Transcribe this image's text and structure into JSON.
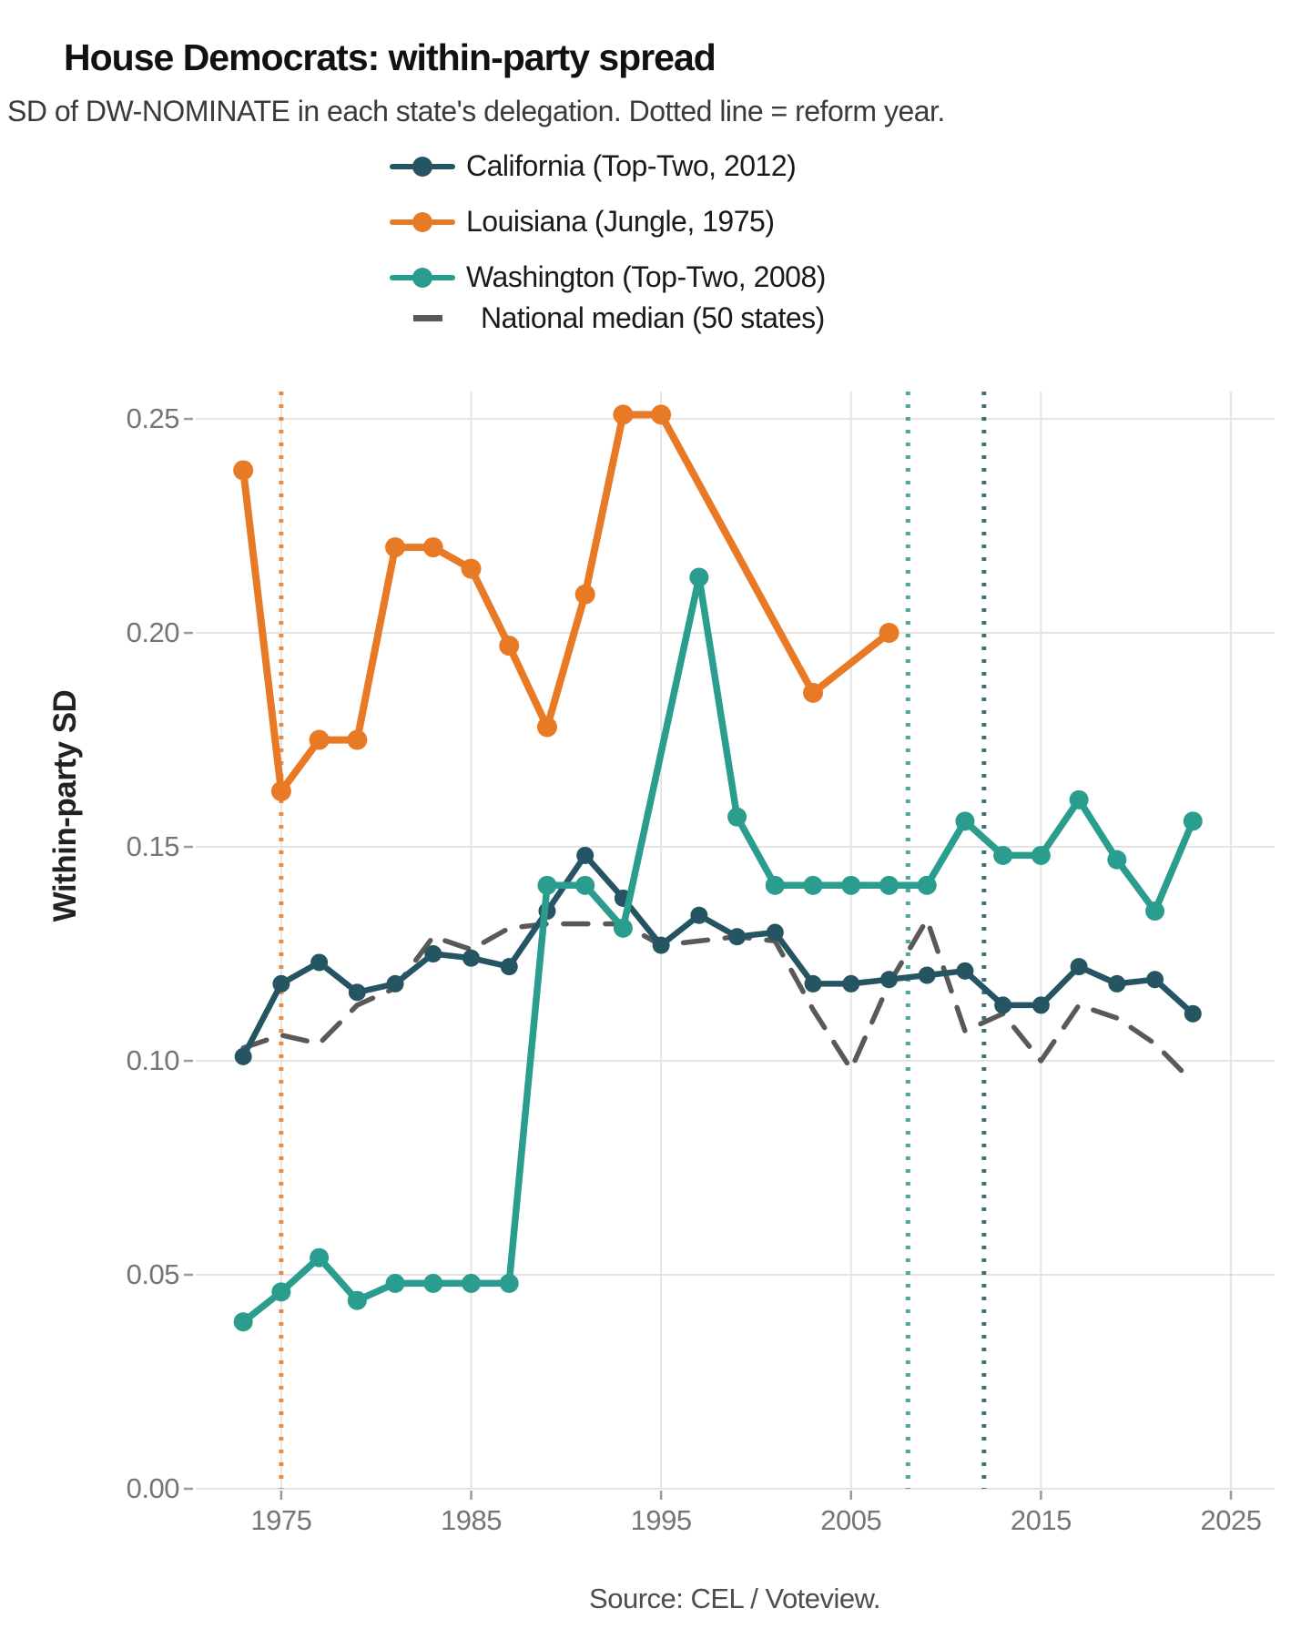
{
  "header": {
    "title": "House Democrats: within-party spread",
    "subtitle": "SD of DW-NOMINATE in each state's delegation. Dotted line = reform year."
  },
  "footer": {
    "source": "Source: CEL / Voteview."
  },
  "chart_data": {
    "type": "line",
    "title": "House Democrats: within-party spread",
    "subtitle": "SD of DW-NOMINATE in each state's delegation. Dotted line = reform year.",
    "xlabel": "",
    "ylabel": "Within-party SD",
    "xlim": [
      1970.5,
      2027.3
    ],
    "ylim": [
      0,
      0.2564
    ],
    "x_ticks": [
      1975,
      1985,
      1995,
      2005,
      2015,
      2025
    ],
    "y_ticks": [
      0.0,
      0.05,
      0.1,
      0.15,
      0.2,
      0.25
    ],
    "y_tick_labels": [
      "0.00",
      "0.05",
      "0.10",
      "0.15",
      "0.20",
      "0.25"
    ],
    "grid": true,
    "legend_position": "top",
    "series": [
      {
        "name": "California (Top-Two, 2012)",
        "color": "#255563",
        "line_style": "solid",
        "markers": true,
        "line_width": 6.5,
        "marker_radius": 9.5,
        "points": [
          [
            1973,
            0.101
          ],
          [
            1975,
            0.118
          ],
          [
            1977,
            0.123
          ],
          [
            1979,
            0.116
          ],
          [
            1981,
            0.118
          ],
          [
            1983,
            0.125
          ],
          [
            1985,
            0.124
          ],
          [
            1987,
            0.122
          ],
          [
            1989,
            0.135
          ],
          [
            1991,
            0.148
          ],
          [
            1993,
            0.138
          ],
          [
            1995,
            0.127
          ],
          [
            1997,
            0.134
          ],
          [
            1999,
            0.129
          ],
          [
            2001,
            0.13
          ],
          [
            2003,
            0.118
          ],
          [
            2005,
            0.118
          ],
          [
            2007,
            0.119
          ],
          [
            2009,
            0.12
          ],
          [
            2011,
            0.121
          ],
          [
            2013,
            0.113
          ],
          [
            2015,
            0.113
          ],
          [
            2017,
            0.122
          ],
          [
            2019,
            0.118
          ],
          [
            2021,
            0.119
          ],
          [
            2023,
            0.111
          ]
        ]
      },
      {
        "name": "Louisiana (Jungle, 1975)",
        "color": "#e87a25",
        "line_style": "solid",
        "markers": true,
        "line_width": 8,
        "marker_radius": 11,
        "points": [
          [
            1973,
            0.238
          ],
          [
            1975,
            0.163
          ],
          [
            1977,
            0.175
          ],
          [
            1979,
            0.175
          ],
          [
            1981,
            0.22
          ],
          [
            1983,
            0.22
          ],
          [
            1985,
            0.215
          ],
          [
            1987,
            0.197
          ],
          [
            1989,
            0.178
          ],
          [
            1991,
            0.209
          ],
          [
            1993,
            0.251
          ],
          [
            1995,
            0.251
          ],
          [
            2003,
            0.186
          ],
          [
            2007,
            0.2
          ]
        ]
      },
      {
        "name": "Washington (Top-Two, 2008)",
        "color": "#2a9d8f",
        "line_style": "solid",
        "markers": true,
        "line_width": 7.5,
        "marker_radius": 10.5,
        "points": [
          [
            1973,
            0.039
          ],
          [
            1975,
            0.046
          ],
          [
            1977,
            0.054
          ],
          [
            1979,
            0.044
          ],
          [
            1981,
            0.048
          ],
          [
            1983,
            0.048
          ],
          [
            1985,
            0.048
          ],
          [
            1987,
            0.048
          ],
          [
            1989,
            0.141
          ],
          [
            1991,
            0.141
          ],
          [
            1993,
            0.131
          ],
          [
            1997,
            0.213
          ],
          [
            1999,
            0.157
          ],
          [
            2001,
            0.141
          ],
          [
            2003,
            0.141
          ],
          [
            2005,
            0.141
          ],
          [
            2007,
            0.141
          ],
          [
            2009,
            0.141
          ],
          [
            2011,
            0.156
          ],
          [
            2013,
            0.148
          ],
          [
            2015,
            0.148
          ],
          [
            2017,
            0.161
          ],
          [
            2019,
            0.147
          ],
          [
            2021,
            0.135
          ],
          [
            2023,
            0.156
          ]
        ]
      },
      {
        "name": "National median (50 states)",
        "color": "#595959",
        "line_style": "dashed",
        "markers": false,
        "line_width": 5.5,
        "points": [
          [
            1973,
            0.103
          ],
          [
            1975,
            0.106
          ],
          [
            1977,
            0.104
          ],
          [
            1979,
            0.113
          ],
          [
            1981,
            0.117
          ],
          [
            1983,
            0.129
          ],
          [
            1985,
            0.126
          ],
          [
            1987,
            0.131
          ],
          [
            1989,
            0.132
          ],
          [
            1991,
            0.132
          ],
          [
            1993,
            0.132
          ],
          [
            1995,
            0.127
          ],
          [
            1997,
            0.128
          ],
          [
            1999,
            0.129
          ],
          [
            2001,
            0.128
          ],
          [
            2003,
            0.112
          ],
          [
            2005,
            0.098
          ],
          [
            2007,
            0.118
          ],
          [
            2009,
            0.133
          ],
          [
            2011,
            0.107
          ],
          [
            2013,
            0.111
          ],
          [
            2015,
            0.1
          ],
          [
            2017,
            0.113
          ],
          [
            2019,
            0.11
          ],
          [
            2021,
            0.104
          ],
          [
            2023,
            0.095
          ]
        ]
      }
    ],
    "reform_lines": [
      {
        "year": 1975,
        "color": "#e87a25"
      },
      {
        "year": 2008,
        "color": "#2a9d8f"
      },
      {
        "year": 2012,
        "color": "#255563"
      }
    ],
    "annotations": []
  },
  "legend": {
    "items": [
      {
        "label": "California (Top-Two, 2012)",
        "color": "#255563",
        "marker": "line-dot"
      },
      {
        "label": "Louisiana (Jungle, 1975)",
        "color": "#e87a25",
        "marker": "line-dot"
      },
      {
        "label": "Washington (Top-Two, 2008)",
        "color": "#2a9d8f",
        "marker": "line-dot"
      },
      {
        "label": "National median (50 states)",
        "color": "#595959",
        "marker": "dash"
      }
    ]
  },
  "colors": {
    "grid": "#e4e4e4",
    "tick": "#9a9a9a",
    "tick_label": "#757575",
    "text": "#1a1a1a"
  }
}
